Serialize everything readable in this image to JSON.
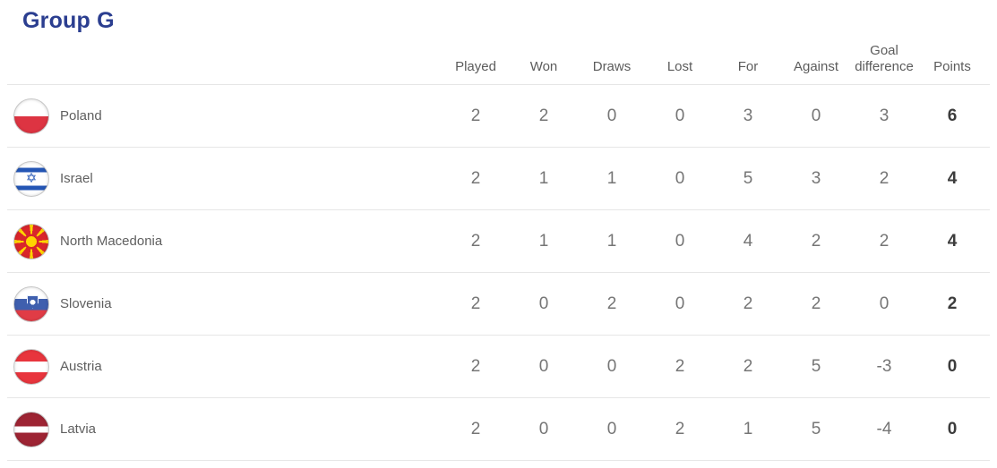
{
  "title": "Group G",
  "columns": [
    "Played",
    "Won",
    "Draws",
    "Lost",
    "For",
    "Against",
    "Goal difference",
    "Points"
  ],
  "colors": {
    "title_text": "#2b3e90",
    "header_text": "#5c5c5c",
    "number_text": "#757575",
    "points_text": "#3c3c3c",
    "team_text": "#5f5f5f",
    "divider": "#e6e6e6"
  },
  "rows": [
    {
      "team": "Poland",
      "flag_icon": "poland-flag-icon",
      "played": "2",
      "won": "2",
      "draws": "0",
      "lost": "0",
      "for": "3",
      "against": "0",
      "goal_difference": "3",
      "points": "6"
    },
    {
      "team": "Israel",
      "flag_icon": "israel-flag-icon",
      "played": "2",
      "won": "1",
      "draws": "1",
      "lost": "0",
      "for": "5",
      "against": "3",
      "goal_difference": "2",
      "points": "4"
    },
    {
      "team": "North Macedonia",
      "flag_icon": "north-macedonia-flag-icon",
      "played": "2",
      "won": "1",
      "draws": "1",
      "lost": "0",
      "for": "4",
      "against": "2",
      "goal_difference": "2",
      "points": "4"
    },
    {
      "team": "Slovenia",
      "flag_icon": "slovenia-flag-icon",
      "played": "2",
      "won": "0",
      "draws": "2",
      "lost": "0",
      "for": "2",
      "against": "2",
      "goal_difference": "0",
      "points": "2"
    },
    {
      "team": "Austria",
      "flag_icon": "austria-flag-icon",
      "played": "2",
      "won": "0",
      "draws": "0",
      "lost": "2",
      "for": "2",
      "against": "5",
      "goal_difference": "-3",
      "points": "0"
    },
    {
      "team": "Latvia",
      "flag_icon": "latvia-flag-icon",
      "played": "2",
      "won": "0",
      "draws": "0",
      "lost": "2",
      "for": "1",
      "against": "5",
      "goal_difference": "-4",
      "points": "0"
    }
  ]
}
